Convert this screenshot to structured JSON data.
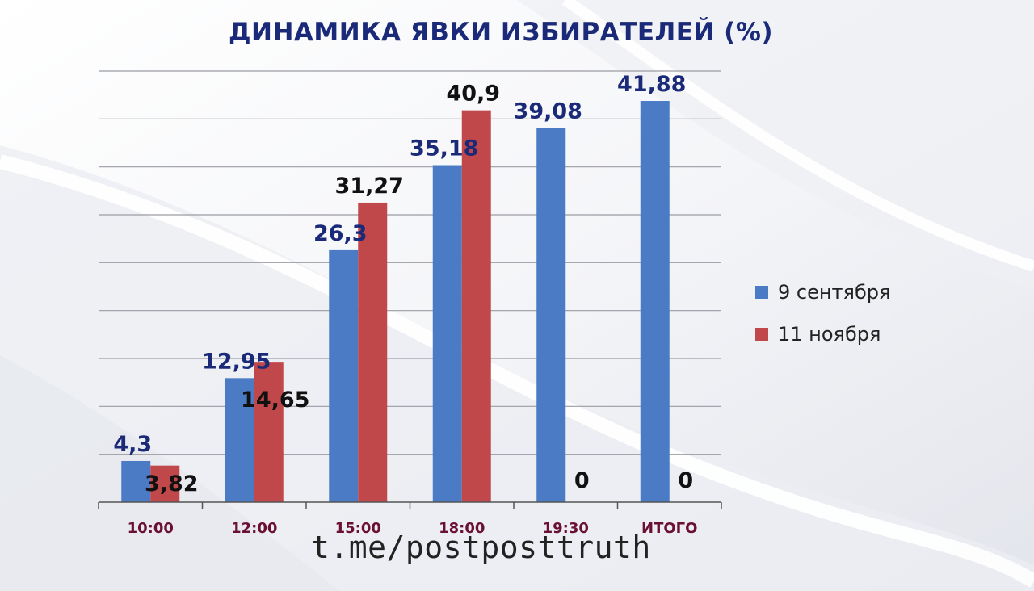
{
  "chart_data": {
    "type": "bar",
    "title": "ДИНАМИКА ЯВКИ ИЗБИРАТЕЛЕЙ (%)",
    "categories": [
      "10:00",
      "12:00",
      "15:00",
      "18:00",
      "19:30",
      "ИТОГО"
    ],
    "series": [
      {
        "name": "9 сентября",
        "color": "#4a7bc4",
        "values": [
          4.3,
          12.95,
          26.3,
          35.18,
          39.08,
          41.88
        ],
        "labels": [
          "4,3",
          "12,95",
          "26,3",
          "35,18",
          "39,08",
          "41,88"
        ],
        "label_color": "#1a2a78"
      },
      {
        "name": "11 ноября",
        "color": "#c0484a",
        "values": [
          3.82,
          14.65,
          31.27,
          40.9,
          0,
          0
        ],
        "labels": [
          "3,82",
          "14,65",
          "31,27",
          "40,9",
          "0",
          "0"
        ],
        "label_color": "#111111"
      }
    ],
    "ylim": [
      0,
      45
    ],
    "grid": true,
    "legend_position": "right",
    "category_label_color": "#6a1030"
  },
  "watermark": "t.me/postposttruth"
}
